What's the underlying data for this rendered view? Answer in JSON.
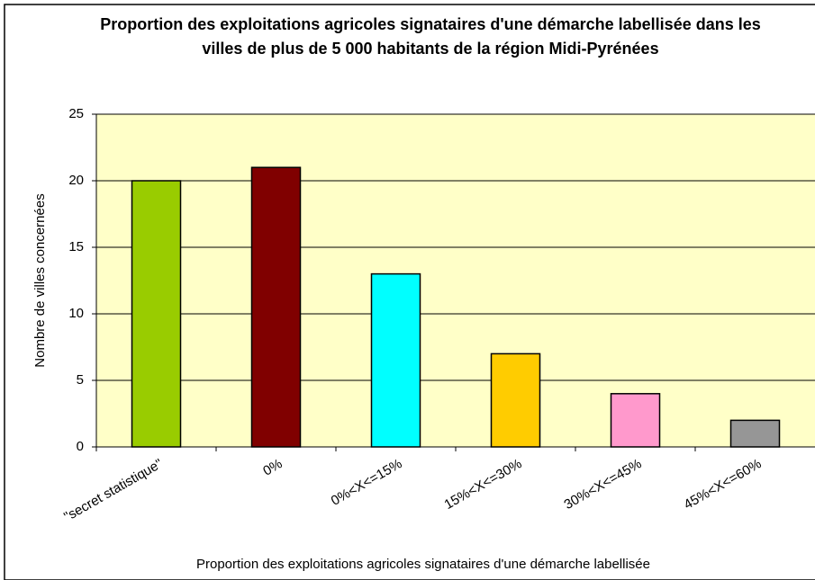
{
  "chart_data": {
    "type": "bar",
    "title": "Proportion des exploitations agricoles signataires d'une démarche labellisée dans les villes de plus de 5 000 habitants de la région Midi-Pyrénées",
    "x_label": "Proportion des exploitations agricoles signataires d'une démarche labellisée",
    "y_label": "Nombre de villes concernées",
    "categories": [
      "\"secret statistique\"",
      "0%",
      "0%<X<=15%",
      "15%<X<=30%",
      "30%<X<=45%",
      "45%<X<=60%"
    ],
    "values": [
      20,
      21,
      13,
      7,
      4,
      2
    ],
    "colors": [
      "#99cc00",
      "#800000",
      "#00ffff",
      "#ffcc00",
      "#ff99cc",
      "#969696"
    ],
    "ylim": [
      0,
      25
    ],
    "yticks": [
      0,
      5,
      10,
      15,
      20,
      25
    ],
    "grid": true
  }
}
